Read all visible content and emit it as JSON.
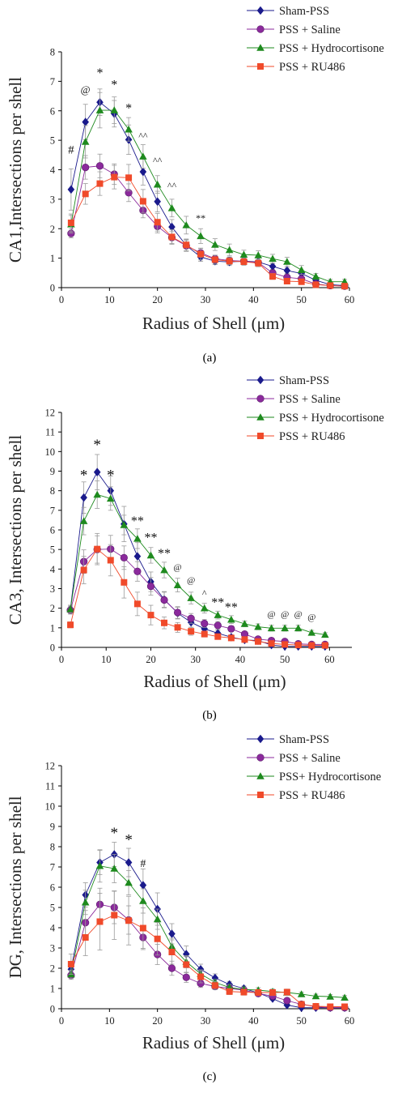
{
  "chart_data": [
    {
      "type": "line",
      "panel_label": "(a)",
      "ylabel": "CA1,Intersections per shell",
      "xlabel": "Radius of Shell (μm)",
      "xlim": [
        0,
        60
      ],
      "ylim": [
        0,
        8
      ],
      "xticks": [
        "0",
        "10",
        "20",
        "30",
        "40",
        "50",
        "60"
      ],
      "yticks": [
        "0",
        "1",
        "2",
        "3",
        "4",
        "5",
        "6",
        "7",
        "8"
      ],
      "legend_position": "top-right",
      "x": [
        2,
        5,
        8,
        11,
        14,
        17,
        20,
        23,
        26,
        29,
        32,
        35,
        38,
        41,
        44,
        47,
        50,
        53,
        56,
        59
      ],
      "series": [
        {
          "name": "Sham-PSS",
          "color": "#1a1a8c",
          "marker": "diamond",
          "values": [
            3.33,
            5.62,
            6.29,
            5.9,
            5.02,
            3.93,
            2.92,
            2.06,
            1.43,
            1.04,
            0.9,
            0.87,
            0.9,
            0.87,
            0.72,
            0.58,
            0.48,
            0.25,
            0.1,
            0.07
          ],
          "errors": [
            0.7,
            0.6,
            0.45,
            0.45,
            0.5,
            0.45,
            0.35,
            0.25,
            0.2,
            0.15,
            0.12,
            0.12,
            0.12,
            0.12,
            0.1,
            0.1,
            0.1,
            0.08,
            0.05,
            0.05
          ]
        },
        {
          "name": "PSS + Saline",
          "color": "#8b2a9c",
          "marker": "circle",
          "values": [
            1.84,
            4.08,
            4.13,
            3.85,
            3.22,
            2.62,
            2.08,
            1.7,
            1.42,
            1.18,
            0.98,
            0.92,
            0.9,
            0.85,
            0.5,
            0.35,
            0.3,
            0.12,
            0.07,
            0.05
          ],
          "errors": [
            0.15,
            0.4,
            0.4,
            0.35,
            0.3,
            0.25,
            0.22,
            0.2,
            0.18,
            0.15,
            0.12,
            0.12,
            0.1,
            0.1,
            0.08,
            0.08,
            0.07,
            0.05,
            0.04,
            0.03
          ]
        },
        {
          "name": "PSS + Hydrocortisone",
          "color": "#1e8a1e",
          "marker": "triangle",
          "values": [
            2.15,
            4.95,
            6.02,
            6.02,
            5.37,
            4.45,
            3.5,
            2.7,
            2.12,
            1.75,
            1.46,
            1.28,
            1.12,
            1.1,
            0.98,
            0.88,
            0.6,
            0.38,
            0.2,
            0.2
          ],
          "errors": [
            0.3,
            0.55,
            0.6,
            0.45,
            0.4,
            0.4,
            0.3,
            0.3,
            0.3,
            0.25,
            0.2,
            0.2,
            0.15,
            0.15,
            0.15,
            0.15,
            0.15,
            0.1,
            0.08,
            0.08
          ]
        },
        {
          "name": "PSS + RU486",
          "color": "#f04a2a",
          "marker": "square",
          "values": [
            2.2,
            3.18,
            3.53,
            3.75,
            3.73,
            2.93,
            2.22,
            1.72,
            1.45,
            1.14,
            0.95,
            0.9,
            0.88,
            0.83,
            0.38,
            0.22,
            0.2,
            0.1,
            0.07,
            0.05
          ],
          "errors": [
            0.3,
            0.35,
            0.4,
            0.4,
            0.45,
            0.4,
            0.3,
            0.25,
            0.2,
            0.2,
            0.15,
            0.12,
            0.12,
            0.12,
            0.1,
            0.08,
            0.08,
            0.05,
            0.04,
            0.03
          ]
        }
      ],
      "annotations": [
        {
          "text": "#",
          "x": 2,
          "y": 4.55,
          "size": 15
        },
        {
          "text": "@",
          "x": 5,
          "y": 6.6,
          "size": 13
        },
        {
          "text": "*",
          "x": 8,
          "y": 7.15,
          "size": 16
        },
        {
          "text": "*",
          "x": 11,
          "y": 6.75,
          "size": 16
        },
        {
          "text": "*",
          "x": 14,
          "y": 5.95,
          "size": 16
        },
        {
          "text": "^^",
          "x": 17,
          "y": 5.05,
          "size": 12
        },
        {
          "text": "^^",
          "x": 20,
          "y": 4.2,
          "size": 12
        },
        {
          "text": "^^",
          "x": 23,
          "y": 3.35,
          "size": 12
        },
        {
          "text": "**",
          "x": 29,
          "y": 2.25,
          "size": 12
        }
      ]
    },
    {
      "type": "line",
      "panel_label": "(b)",
      "ylabel": "CA3, Intersections per shell",
      "xlabel": "Radius of Shell (μm)",
      "xlim": [
        0,
        65
      ],
      "ylim": [
        0,
        12
      ],
      "xticks": [
        "0",
        "10",
        "20",
        "30",
        "40",
        "50",
        "60"
      ],
      "yticks": [
        "0",
        "1",
        "2",
        "3",
        "4",
        "5",
        "6",
        "7",
        "8",
        "9",
        "10",
        "11",
        "12"
      ],
      "legend_position": "top-right",
      "x": [
        2,
        5,
        8,
        11,
        14,
        17,
        20,
        23,
        26,
        29,
        32,
        35,
        38,
        41,
        44,
        47,
        50,
        53,
        56,
        59
      ],
      "series": [
        {
          "name": "Sham-PSS",
          "color": "#1a1a8c",
          "marker": "diamond",
          "values": [
            1.95,
            7.65,
            8.95,
            8.0,
            6.3,
            4.65,
            3.35,
            2.45,
            1.75,
            1.28,
            0.95,
            0.72,
            0.52,
            0.38,
            0.35,
            0.12,
            0.05,
            0.05,
            0.05,
            0.05
          ],
          "errors": [
            0.2,
            0.8,
            0.9,
            0.75,
            0.9,
            0.7,
            0.5,
            0.4,
            0.3,
            0.25,
            0.2,
            0.15,
            0.12,
            0.1,
            0.1,
            0.05,
            0.04,
            0.04,
            0.04,
            0.04
          ]
        },
        {
          "name": "PSS + Saline",
          "color": "#8b2a9c",
          "marker": "circle",
          "values": [
            1.9,
            4.38,
            5.0,
            5.02,
            4.58,
            3.88,
            3.12,
            2.42,
            1.78,
            1.48,
            1.22,
            1.12,
            0.95,
            0.68,
            0.42,
            0.35,
            0.3,
            0.18,
            0.15,
            0.15
          ],
          "errors": [
            0.2,
            0.6,
            0.7,
            0.7,
            0.6,
            0.5,
            0.45,
            0.4,
            0.3,
            0.25,
            0.2,
            0.2,
            0.15,
            0.12,
            0.1,
            0.1,
            0.08,
            0.05,
            0.05,
            0.05
          ]
        },
        {
          "name": "PSS + Hydrocortisone",
          "color": "#1e8a1e",
          "marker": "triangle",
          "values": [
            1.95,
            6.45,
            7.8,
            7.6,
            6.25,
            5.55,
            4.7,
            3.95,
            3.18,
            2.52,
            2.0,
            1.65,
            1.42,
            1.2,
            1.05,
            0.98,
            0.98,
            0.98,
            0.75,
            0.65
          ],
          "errors": [
            0.2,
            0.7,
            0.7,
            0.6,
            0.5,
            0.5,
            0.4,
            0.4,
            0.35,
            0.3,
            0.25,
            0.2,
            0.2,
            0.15,
            0.15,
            0.15,
            0.15,
            0.15,
            0.12,
            0.1
          ]
        },
        {
          "name": "PSS + RU486",
          "color": "#f04a2a",
          "marker": "square",
          "values": [
            1.15,
            3.95,
            5.02,
            4.45,
            3.32,
            2.22,
            1.65,
            1.25,
            1.02,
            0.82,
            0.68,
            0.55,
            0.48,
            0.4,
            0.3,
            0.2,
            0.15,
            0.12,
            0.1,
            0.1
          ],
          "errors": [
            0.15,
            0.7,
            0.8,
            0.8,
            0.8,
            0.6,
            0.5,
            0.3,
            0.25,
            0.2,
            0.15,
            0.12,
            0.1,
            0.1,
            0.08,
            0.06,
            0.05,
            0.05,
            0.05,
            0.05
          ]
        }
      ],
      "annotations": [
        {
          "text": "*",
          "x": 5,
          "y": 8.55,
          "size": 19
        },
        {
          "text": "*",
          "x": 8,
          "y": 10.1,
          "size": 19
        },
        {
          "text": "*",
          "x": 11,
          "y": 8.55,
          "size": 19
        },
        {
          "text": "**",
          "x": 17,
          "y": 6.25,
          "size": 16
        },
        {
          "text": "**",
          "x": 20,
          "y": 5.4,
          "size": 16
        },
        {
          "text": "**",
          "x": 23,
          "y": 4.6,
          "size": 16
        },
        {
          "text": "@",
          "x": 26,
          "y": 3.95,
          "size": 11
        },
        {
          "text": "@",
          "x": 29,
          "y": 3.3,
          "size": 11
        },
        {
          "text": "^",
          "x": 32,
          "y": 2.6,
          "size": 12
        },
        {
          "text": "**",
          "x": 35,
          "y": 2.1,
          "size": 16
        },
        {
          "text": "**",
          "x": 38,
          "y": 1.85,
          "size": 16
        },
        {
          "text": "@",
          "x": 47,
          "y": 1.55,
          "size": 11
        },
        {
          "text": "@",
          "x": 50,
          "y": 1.55,
          "size": 11
        },
        {
          "text": "@",
          "x": 53,
          "y": 1.55,
          "size": 11
        },
        {
          "text": "@",
          "x": 56,
          "y": 1.4,
          "size": 11
        }
      ]
    },
    {
      "type": "line",
      "panel_label": "(c)",
      "ylabel": "DG, Intersections per shell",
      "xlabel": "Radius of Shell (μm)",
      "xlim": [
        0,
        60
      ],
      "ylim": [
        0,
        12
      ],
      "xticks": [
        "0",
        "10",
        "20",
        "30",
        "40",
        "50",
        "60"
      ],
      "yticks": [
        "0",
        "1",
        "2",
        "3",
        "4",
        "5",
        "6",
        "7",
        "8",
        "9",
        "10",
        "11",
        "12"
      ],
      "legend_position": "top-right",
      "x": [
        2,
        5,
        8,
        11,
        14,
        17,
        20,
        23,
        26,
        29,
        32,
        35,
        38,
        41,
        44,
        47,
        50,
        53,
        56,
        59
      ],
      "series": [
        {
          "name": "Sham-PSS",
          "color": "#1a1a8c",
          "marker": "diamond",
          "values": [
            1.95,
            5.62,
            7.22,
            7.62,
            7.22,
            6.1,
            4.92,
            3.7,
            2.7,
            1.95,
            1.52,
            1.2,
            1.0,
            0.78,
            0.5,
            0.18,
            0.05,
            0.05,
            0.05,
            0.05
          ],
          "errors": [
            0.3,
            0.6,
            0.6,
            0.6,
            0.7,
            0.8,
            0.8,
            0.5,
            0.4,
            0.25,
            0.2,
            0.15,
            0.12,
            0.1,
            0.08,
            0.05,
            0.04,
            0.04,
            0.04,
            0.04
          ]
        },
        {
          "name": "PSS +  Saline",
          "color": "#8b2a9c",
          "marker": "circle",
          "values": [
            1.65,
            4.25,
            5.15,
            5.0,
            4.38,
            3.52,
            2.68,
            2.0,
            1.55,
            1.25,
            1.1,
            1.0,
            0.92,
            0.75,
            0.62,
            0.4,
            0.22,
            0.1,
            0.05,
            0.05
          ],
          "errors": [
            0.2,
            0.6,
            0.8,
            0.8,
            0.7,
            0.6,
            0.5,
            0.35,
            0.25,
            0.2,
            0.15,
            0.15,
            0.12,
            0.1,
            0.1,
            0.08,
            0.06,
            0.04,
            0.04,
            0.04
          ]
        },
        {
          "name": "PSS+ Hydrocortisone",
          "color": "#1e8a1e",
          "marker": "triangle",
          "values": [
            1.7,
            5.25,
            7.05,
            6.92,
            6.22,
            5.32,
            4.42,
            3.08,
            2.32,
            1.72,
            1.3,
            1.05,
            0.95,
            0.92,
            0.85,
            0.8,
            0.72,
            0.62,
            0.6,
            0.55
          ],
          "errors": [
            0.2,
            0.6,
            0.8,
            0.7,
            0.6,
            0.6,
            0.5,
            0.4,
            0.3,
            0.2,
            0.15,
            0.15,
            0.12,
            0.12,
            0.12,
            0.12,
            0.1,
            0.1,
            0.1,
            0.1
          ]
        },
        {
          "name": "PSS +  RU486",
          "color": "#f04a2a",
          "marker": "square",
          "values": [
            2.2,
            3.52,
            4.3,
            4.62,
            4.35,
            3.98,
            3.45,
            2.8,
            2.18,
            1.58,
            1.15,
            0.85,
            0.82,
            0.8,
            0.8,
            0.82,
            0.22,
            0.12,
            0.1,
            0.1
          ],
          "errors": [
            0.5,
            0.9,
            1.4,
            1.2,
            1.2,
            1.0,
            0.8,
            0.6,
            0.4,
            0.3,
            0.2,
            0.15,
            0.15,
            0.15,
            0.15,
            0.15,
            0.08,
            0.05,
            0.05,
            0.05
          ]
        }
      ],
      "annotations": [
        {
          "text": "*",
          "x": 11,
          "y": 8.45,
          "size": 19
        },
        {
          "text": "*",
          "x": 14,
          "y": 8.1,
          "size": 19
        },
        {
          "text": "#",
          "x": 17,
          "y": 7.0,
          "size": 14
        }
      ]
    }
  ]
}
